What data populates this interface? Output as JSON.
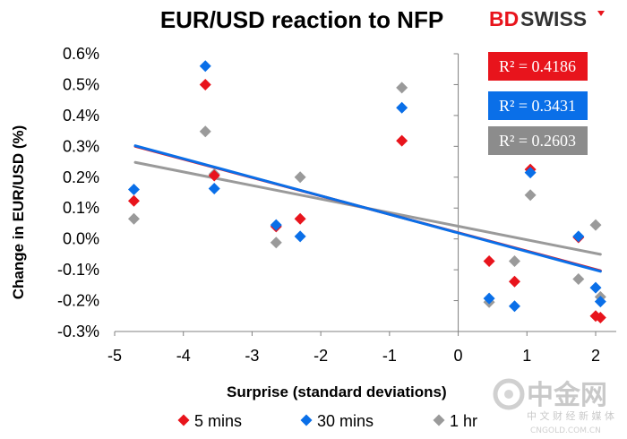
{
  "chart_data": {
    "type": "scatter",
    "title": "EUR/USD reaction to NFP",
    "xlabel": "Surprise (standard deviations)",
    "ylabel": "Change in EUR/USD  (%)",
    "xlim": [
      -5,
      2.3
    ],
    "ylim": [
      -0.003,
      0.006
    ],
    "x_ticks": [
      "-5",
      "-4",
      "-3",
      "-2",
      "-1",
      "0",
      "1",
      "2"
    ],
    "y_ticks": [
      "-0.3%",
      "-0.2%",
      "-0.1%",
      "0.0%",
      "0.1%",
      "0.2%",
      "0.3%",
      "0.4%",
      "0.5%",
      "0.6%"
    ],
    "x_tick_values": [
      -5,
      -4,
      -3,
      -2,
      -1,
      0,
      1,
      2
    ],
    "y_tick_values": [
      -0.003,
      -0.002,
      -0.001,
      0,
      0.001,
      0.002,
      0.003,
      0.004,
      0.005,
      0.006
    ],
    "grid": false,
    "legend_position": "bottom",
    "series": [
      {
        "name": "5 mins",
        "color": "#e8141c",
        "points": [
          {
            "x": -4.72,
            "y": 0.00123
          },
          {
            "x": -3.68,
            "y": 0.005
          },
          {
            "x": -3.55,
            "y": 0.00205
          },
          {
            "x": -2.65,
            "y": 0.0004
          },
          {
            "x": -2.3,
            "y": 0.00065
          },
          {
            "x": -0.82,
            "y": 0.00318
          },
          {
            "x": 0.45,
            "y": -0.00072
          },
          {
            "x": 0.82,
            "y": -0.00138
          },
          {
            "x": 1.05,
            "y": 0.00225
          },
          {
            "x": 1.75,
            "y": 5e-05
          },
          {
            "x": 2.0,
            "y": -0.0025
          },
          {
            "x": 2.07,
            "y": -0.00255
          }
        ],
        "trendline": {
          "x1": -4.7,
          "y1": 0.003,
          "x2": 2.07,
          "y2": -0.00103
        }
      },
      {
        "name": "30 mins",
        "color": "#0a6fe8",
        "points": [
          {
            "x": -4.72,
            "y": 0.0016
          },
          {
            "x": -3.68,
            "y": 0.0056
          },
          {
            "x": -3.55,
            "y": 0.00163
          },
          {
            "x": -2.65,
            "y": 0.00045
          },
          {
            "x": -2.3,
            "y": 8e-05
          },
          {
            "x": -0.82,
            "y": 0.00425
          },
          {
            "x": 0.45,
            "y": -0.00193
          },
          {
            "x": 0.82,
            "y": -0.00218
          },
          {
            "x": 1.05,
            "y": 0.00215
          },
          {
            "x": 1.75,
            "y": 8e-05
          },
          {
            "x": 2.0,
            "y": -0.00158
          },
          {
            "x": 2.07,
            "y": -0.00203
          }
        ],
        "trendline": {
          "x1": -4.7,
          "y1": 0.00302,
          "x2": 2.07,
          "y2": -0.00105
        }
      },
      {
        "name": "1 hr",
        "color": "#9a9a9a",
        "points": [
          {
            "x": -4.72,
            "y": 0.00065
          },
          {
            "x": -3.68,
            "y": 0.00348
          },
          {
            "x": -3.55,
            "y": 0.0021
          },
          {
            "x": -2.65,
            "y": -0.00012
          },
          {
            "x": -2.3,
            "y": 0.002
          },
          {
            "x": -0.82,
            "y": 0.0049
          },
          {
            "x": 0.45,
            "y": -0.00205
          },
          {
            "x": 0.82,
            "y": -0.00072
          },
          {
            "x": 1.05,
            "y": 0.00142
          },
          {
            "x": 1.75,
            "y": -0.0013
          },
          {
            "x": 2.0,
            "y": 0.00045
          },
          {
            "x": 2.07,
            "y": -0.00188
          }
        ],
        "trendline": {
          "x1": -4.7,
          "y1": 0.00248,
          "x2": 2.07,
          "y2": -0.0005
        }
      }
    ],
    "r_squared": [
      {
        "label": "R² = 0.4186",
        "color": "#e8141c"
      },
      {
        "label": "R² = 0.3431",
        "color": "#0a6fe8"
      },
      {
        "label": "R² = 0.2603",
        "color": "#8c8c8c"
      }
    ]
  },
  "branding": {
    "logo_bd": "BD",
    "logo_swiss": "SWISS",
    "watermark_cn": "中金网",
    "watermark_sub": "中 文 财 经 新 媒 体",
    "watermark_url": "CNGOLD.COM.CN"
  }
}
